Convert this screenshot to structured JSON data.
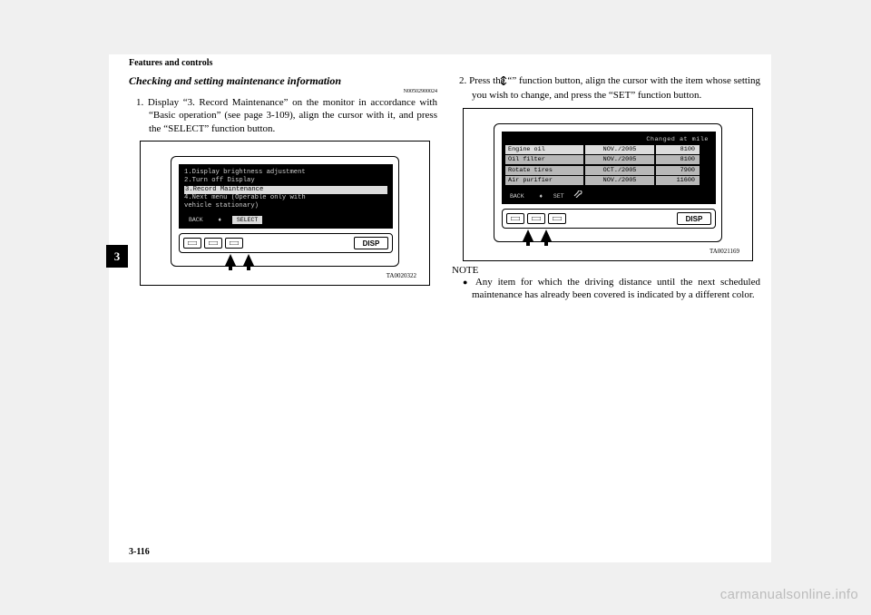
{
  "header": "Features and controls",
  "page_number": "3-116",
  "side_tab": "3",
  "watermark": "carmanualsonline.info",
  "left": {
    "title": "Checking and setting maintenance information",
    "docnum": "N00502900024",
    "step1": "1. Display “3. Record Maintenance” on the monitor in accordance with “Basic operation” (see page 3-109), align the cursor with it, and press the “SELECT” function button.",
    "screen": {
      "line1": "1.Display brightness adjustment",
      "line2": "2.Turn off Display",
      "line3": "3.Record Maintenance",
      "line4": "4.Next menu (Operable only with",
      "line5": "  vehicle stationary)",
      "back": "BACK",
      "select": "SELECT"
    },
    "disp": "DISP",
    "fignum": "TA0020322"
  },
  "right": {
    "step2a": "2. Press the “",
    "step2b": "” function button, align the cursor with the item whose setting you wish to change, and press the “SET” function button.",
    "screen": {
      "head": "Changed at      mile",
      "rows": [
        {
          "name": "Engine oil",
          "date": "NOV./2005",
          "mile": "8100",
          "active": true
        },
        {
          "name": "Oil filter",
          "date": "NOV./2005",
          "mile": "8100",
          "active": false
        },
        {
          "name": "Rotate tires",
          "date": "OCT./2005",
          "mile": "7900",
          "active": false
        },
        {
          "name": "Air purifier",
          "date": "NOV./2005",
          "mile": "11600",
          "active": false
        }
      ],
      "back": "BACK",
      "set": "SET"
    },
    "disp": "DISP",
    "fignum": "TA0021169",
    "note_head": "NOTE",
    "note_body": "Any item for which the driving distance until the next scheduled maintenance has already been covered is indicated by a different color."
  }
}
